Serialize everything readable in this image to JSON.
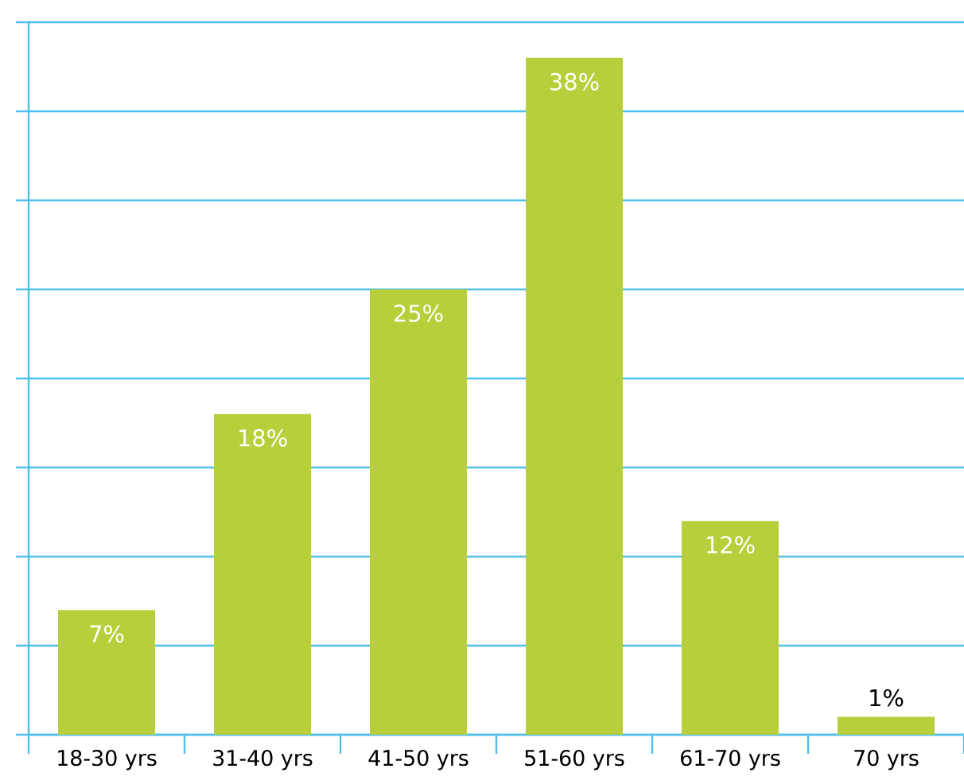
{
  "chart_data": {
    "type": "bar",
    "categories": [
      "18-30 yrs",
      "31-40 yrs",
      "41-50 yrs",
      "51-60 yrs",
      "61-70 yrs",
      "70 yrs"
    ],
    "values": [
      7,
      18,
      25,
      38,
      12,
      1
    ],
    "value_labels": [
      "7%",
      "18%",
      "25%",
      "38%",
      "12%",
      "1%"
    ],
    "color": "#b8cf3b",
    "ylim": [
      0,
      40
    ],
    "yticks": [
      {
        "value": 0,
        "label": null
      },
      {
        "value": 5,
        "label": null
      },
      {
        "value": 10,
        "label": null
      },
      {
        "value": 15,
        "label": null
      },
      {
        "value": 20,
        "label": null
      },
      {
        "value": 25,
        "label": null
      },
      {
        "value": 30,
        "label": null
      },
      {
        "value": 35,
        "label": null
      },
      {
        "value": 40,
        "label": null
      }
    ],
    "grid": "y"
  }
}
